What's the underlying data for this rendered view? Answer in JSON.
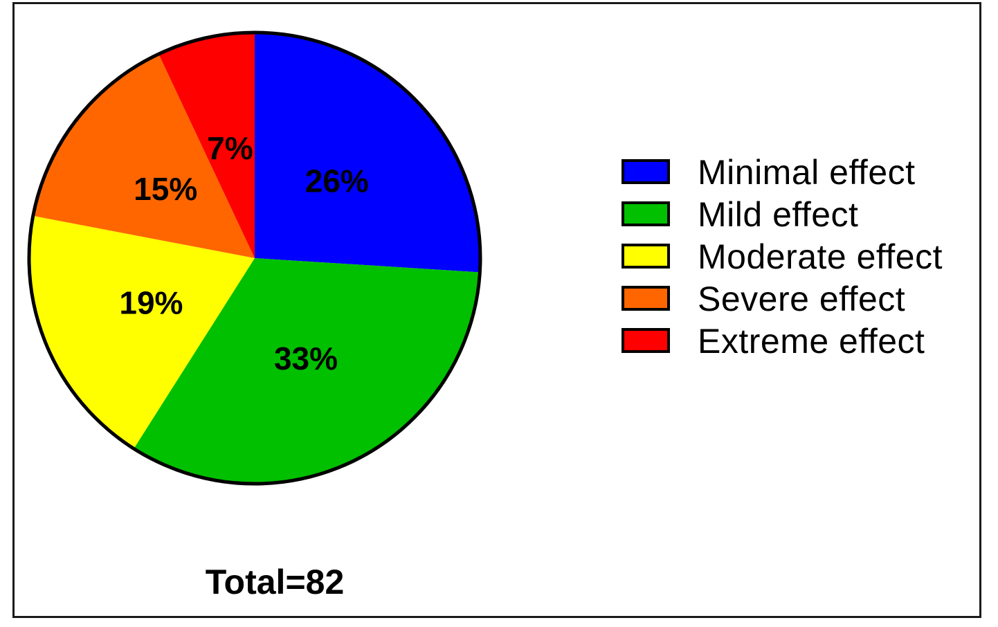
{
  "chart_data": {
    "type": "pie",
    "categories": [
      "Minimal effect",
      "Mild effect",
      "Moderate effect",
      "Severe effect",
      "Extreme effect"
    ],
    "values": [
      26,
      33,
      19,
      15,
      7
    ],
    "value_labels": [
      "26%",
      "33%",
      "19%",
      "15%",
      "7%"
    ],
    "colors": [
      "#0000ff",
      "#00c000",
      "#ffff00",
      "#ff6600",
      "#ff0000"
    ],
    "start": "12 o'clock",
    "direction": "clockwise",
    "legend_position": "right",
    "annotation": "Total=82"
  }
}
